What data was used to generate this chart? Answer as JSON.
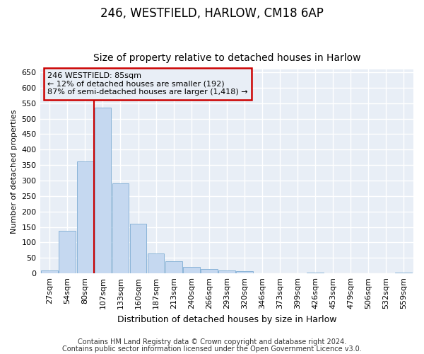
{
  "title1": "246, WESTFIELD, HARLOW, CM18 6AP",
  "title2": "Size of property relative to detached houses in Harlow",
  "xlabel": "Distribution of detached houses by size in Harlow",
  "ylabel": "Number of detached properties",
  "categories": [
    "27sqm",
    "54sqm",
    "80sqm",
    "107sqm",
    "133sqm",
    "160sqm",
    "187sqm",
    "213sqm",
    "240sqm",
    "266sqm",
    "293sqm",
    "320sqm",
    "346sqm",
    "373sqm",
    "399sqm",
    "426sqm",
    "453sqm",
    "479sqm",
    "506sqm",
    "532sqm",
    "559sqm"
  ],
  "values": [
    10,
    137,
    362,
    535,
    292,
    160,
    65,
    40,
    22,
    15,
    9,
    7,
    0,
    0,
    0,
    2,
    0,
    0,
    0,
    0,
    2
  ],
  "bar_color": "#c5d8f0",
  "bar_edgecolor": "#8ab4d8",
  "vline_color": "#cc0000",
  "vline_x": 2.5,
  "annotation_line1": "246 WESTFIELD: 85sqm",
  "annotation_line2": "← 12% of detached houses are smaller (192)",
  "annotation_line3": "87% of semi-detached houses are larger (1,418) →",
  "annotation_box_edgecolor": "#cc0000",
  "ylim": [
    0,
    660
  ],
  "yticks": [
    0,
    50,
    100,
    150,
    200,
    250,
    300,
    350,
    400,
    450,
    500,
    550,
    600,
    650
  ],
  "footnote1": "Contains HM Land Registry data © Crown copyright and database right 2024.",
  "footnote2": "Contains public sector information licensed under the Open Government Licence v3.0.",
  "fig_bg_color": "#ffffff",
  "plot_bg_color": "#e8eef6",
  "grid_color": "#ffffff",
  "title1_fontsize": 12,
  "title2_fontsize": 10,
  "xlabel_fontsize": 9,
  "ylabel_fontsize": 8,
  "tick_fontsize": 8,
  "annot_fontsize": 8,
  "footnote_fontsize": 7
}
